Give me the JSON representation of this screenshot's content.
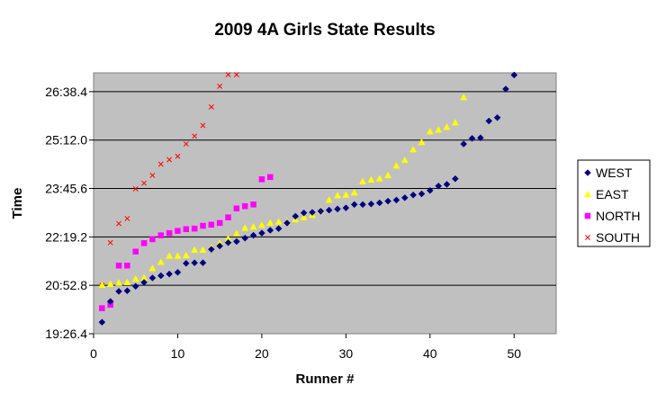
{
  "chart_data": {
    "type": "scatter",
    "title": "2009 4A Girls State Results",
    "xlabel": "Runner #",
    "ylabel": "Time",
    "xlim": [
      0,
      55
    ],
    "ylim": [
      1166.4,
      1631.9
    ],
    "x_ticks": [
      0,
      10,
      20,
      30,
      40,
      50
    ],
    "y_ticks": [
      {
        "value": 1166.4,
        "label": "19:26.4"
      },
      {
        "value": 1252.8,
        "label": "20:52.8"
      },
      {
        "value": 1339.2,
        "label": "22:19.2"
      },
      {
        "value": 1425.6,
        "label": "23:45.6"
      },
      {
        "value": 1512.0,
        "label": "25:12.0"
      },
      {
        "value": 1598.4,
        "label": "26:38.4"
      }
    ],
    "grid": "horizontal",
    "legend_position": "right",
    "series": [
      {
        "name": "WEST",
        "marker": "diamond",
        "color": "#000080",
        "x": [
          1,
          2,
          3,
          4,
          5,
          6,
          7,
          8,
          9,
          10,
          11,
          12,
          13,
          14,
          15,
          16,
          17,
          18,
          19,
          20,
          21,
          22,
          23,
          24,
          25,
          26,
          27,
          28,
          29,
          30,
          31,
          32,
          33,
          34,
          35,
          36,
          37,
          38,
          39,
          40,
          41,
          42,
          43,
          44,
          45,
          46,
          47,
          48,
          49,
          50
        ],
        "y": [
          1187,
          1224,
          1242,
          1243,
          1251,
          1258,
          1266,
          1270,
          1273,
          1276,
          1292,
          1293,
          1293,
          1317,
          1323,
          1329,
          1331,
          1337,
          1342,
          1346,
          1351,
          1354,
          1364,
          1376,
          1382,
          1383,
          1385,
          1387,
          1389,
          1391,
          1397,
          1397,
          1398,
          1400,
          1403,
          1405,
          1409,
          1414,
          1416,
          1422,
          1430,
          1433,
          1443,
          1505,
          1515,
          1516,
          1546,
          1552,
          1603,
          1628
        ]
      },
      {
        "name": "EAST",
        "marker": "triangle",
        "color": "#ffff00",
        "x": [
          1,
          2,
          3,
          4,
          5,
          6,
          7,
          8,
          9,
          10,
          11,
          12,
          13,
          14,
          15,
          16,
          17,
          18,
          19,
          20,
          21,
          22,
          23,
          24,
          25,
          26,
          27,
          28,
          29,
          30,
          31,
          32,
          33,
          34,
          35,
          36,
          37,
          38,
          39,
          40,
          41,
          42,
          43,
          44
        ],
        "y": [
          1253,
          1255,
          1257,
          1258,
          1264,
          1266,
          1283,
          1294,
          1305,
          1305,
          1306,
          1316,
          1316,
          1320,
          1328,
          1336,
          1345,
          1355,
          1357,
          1360,
          1364,
          1366,
          1366,
          1370,
          1374,
          1378,
          1386,
          1405,
          1413,
          1414,
          1418,
          1438,
          1441,
          1443,
          1449,
          1466,
          1476,
          1495,
          1508,
          1527,
          1530,
          1535,
          1543,
          1588
        ]
      },
      {
        "name": "NORTH",
        "marker": "square",
        "color": "#ff00ff",
        "x": [
          1,
          2,
          3,
          4,
          5,
          6,
          7,
          8,
          9,
          10,
          11,
          12,
          13,
          14,
          15,
          16,
          17,
          18,
          19,
          20,
          21
        ],
        "y": [
          1212,
          1218,
          1288,
          1288,
          1313,
          1328,
          1335,
          1342,
          1346,
          1350,
          1353,
          1354,
          1359,
          1361,
          1364,
          1374,
          1390,
          1394,
          1397,
          1442,
          1446
        ]
      },
      {
        "name": "SOUTH",
        "marker": "x",
        "color": "#ff0000",
        "x": [
          1,
          2,
          3,
          4,
          5,
          6,
          7,
          8,
          9,
          10,
          11,
          12,
          13,
          14,
          15,
          16,
          17
        ],
        "y": [
          1253,
          1329,
          1363,
          1372,
          1425,
          1435,
          1449,
          1469,
          1477,
          1483,
          1505,
          1519,
          1538,
          1571,
          1608,
          1631,
          1645
        ]
      }
    ]
  }
}
